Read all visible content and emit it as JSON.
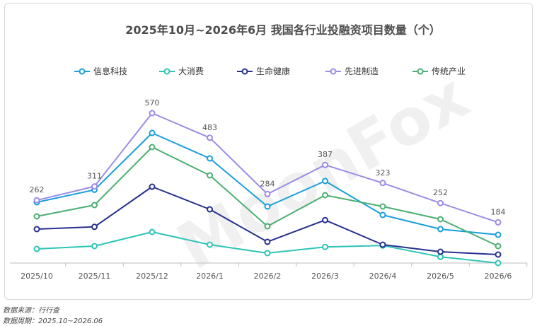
{
  "chart_data": {
    "type": "line",
    "title": "2025年10月~2026年6月 我国各行业投融资项目数量（个）",
    "categories": [
      "2025/10",
      "2025/11",
      "2025/12",
      "2026/1",
      "2026/2",
      "2026/3",
      "2026/4",
      "2026/5",
      "2026/6"
    ],
    "ylim": [
      0,
      670
    ],
    "grid": false,
    "legend_position": "top",
    "series": [
      {
        "name": "信息科技",
        "color": "#1a9fdc",
        "values": [
          255,
          299,
          500,
          410,
          240,
          330,
          210,
          160,
          140
        ]
      },
      {
        "name": "大消费",
        "color": "#2ec4b6",
        "values": [
          90,
          100,
          150,
          105,
          75,
          97,
          102,
          62,
          40
        ]
      },
      {
        "name": "生命健康",
        "color": "#27308f",
        "values": [
          160,
          168,
          310,
          230,
          115,
          192,
          105,
          80,
          70
        ]
      },
      {
        "name": "先进制造",
        "color": "#9b8ce6",
        "values": [
          262,
          311,
          570,
          483,
          284,
          387,
          323,
          252,
          184
        ]
      },
      {
        "name": "传统产业",
        "color": "#4caf72",
        "values": [
          205,
          245,
          450,
          350,
          170,
          280,
          240,
          195,
          100
        ]
      }
    ],
    "data_labels": {
      "series": "先进制造",
      "values": [
        "262",
        "311",
        "570",
        "483",
        "284",
        "387",
        "323",
        "252",
        "184"
      ]
    }
  },
  "watermark": "MoonFox",
  "footnotes": {
    "source": "数据来源：行行查",
    "period": "数据周期：2025.10~2026.06"
  }
}
